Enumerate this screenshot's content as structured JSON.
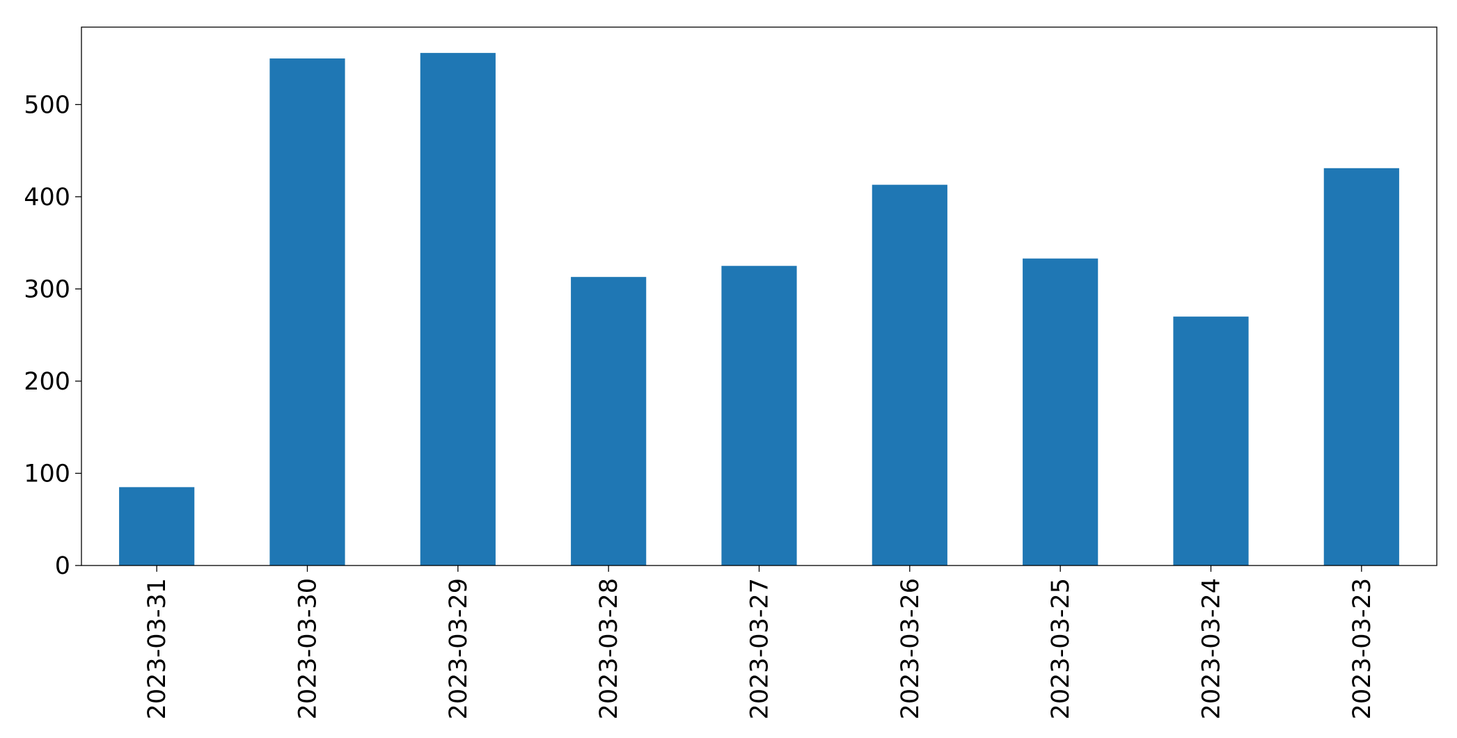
{
  "chart_data": {
    "type": "bar",
    "categories": [
      "2023-03-31",
      "2023-03-30",
      "2023-03-29",
      "2023-03-28",
      "2023-03-27",
      "2023-03-26",
      "2023-03-25",
      "2023-03-24",
      "2023-03-23"
    ],
    "values": [
      85,
      550,
      556,
      313,
      325,
      413,
      333,
      270,
      431
    ],
    "color": "#1f77b4",
    "ylim": [
      0,
      584
    ],
    "yticks": [
      0,
      100,
      200,
      300,
      400,
      500
    ],
    "grid": false
  }
}
